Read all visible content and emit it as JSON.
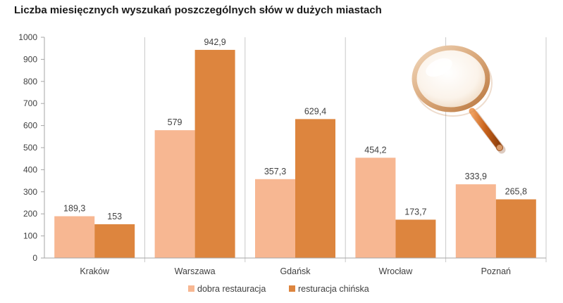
{
  "chart_data": {
    "type": "bar",
    "title": "Liczba miesięcznych  wyszukań  poszczególnych  słów w dużych miastach",
    "categories": [
      "Kraków",
      "Warszawa",
      "Gdańsk",
      "Wrocław",
      "Poznań"
    ],
    "series": [
      {
        "name": "dobra restauracja",
        "color": "#f7b792",
        "values": [
          189.3,
          579,
          357.3,
          454.2,
          333.9
        ],
        "labels": [
          "189,3",
          "579",
          "357,3",
          "454,2",
          "333,9"
        ]
      },
      {
        "name": "resturacja chińska",
        "color": "#dd853e",
        "values": [
          153,
          942.9,
          629.4,
          173.7,
          265.8
        ],
        "labels": [
          "153",
          "942,9",
          "629,4",
          "173,7",
          "265,8"
        ]
      }
    ],
    "ylim": [
      0,
      1000
    ],
    "yticks": [
      0,
      100,
      200,
      300,
      400,
      500,
      600,
      700,
      800,
      900,
      1000
    ],
    "grid": "vertical category separators",
    "legend": "bottom",
    "decoration": "magnifying-glass-icon"
  }
}
